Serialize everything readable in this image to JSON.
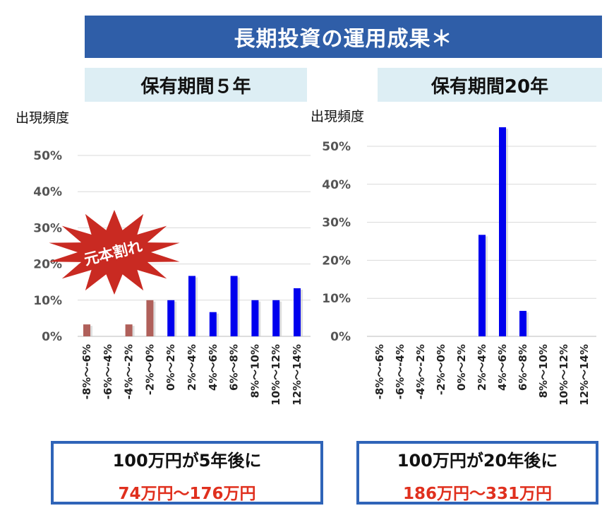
{
  "header": {
    "title": "長期投資の運用成果＊"
  },
  "left": {
    "period_label": "保有期間５年",
    "freq_label": "出現頻度",
    "burst_label": "元本割れ",
    "result_title": "100万円が5年後に",
    "result_range": "74万円～176万円"
  },
  "right": {
    "period_label": "保有期間20年",
    "freq_label": "出現頻度",
    "result_title": "100万円が20年後に",
    "result_range": "186万円～331万円"
  },
  "colors": {
    "banner": "#2f5ea8",
    "positive_bar": "#0000ee",
    "loss_bar": "#b0605a",
    "accent": "#e0301e",
    "burst": "#c92a22"
  },
  "chart_data": [
    {
      "type": "bar",
      "categories": [
        "-8%～-6%",
        "-6%～-4%",
        "-4%～-2%",
        "-2%～0%",
        "0%～2%",
        "2%～4%",
        "4%～6%",
        "6%～8%",
        "8%～10%",
        "10%～12%",
        "12%～14%"
      ],
      "values": [
        3.3,
        0,
        3.3,
        10,
        10,
        16.7,
        6.7,
        16.7,
        10,
        10,
        13.3
      ],
      "yticks": [
        "0%",
        "10%",
        "20%",
        "30%",
        "40%",
        "50%"
      ],
      "ylim": [
        0,
        50
      ],
      "grid": true
    },
    {
      "type": "bar",
      "categories": [
        "-8%～-6%",
        "-6%～-4%",
        "-4%～-2%",
        "-2%～0%",
        "0%～2%",
        "2%～4%",
        "4%～6%",
        "6%～8%",
        "8%～10%",
        "10%～12%",
        "12%～14%"
      ],
      "values": [
        0,
        0,
        0,
        0,
        0,
        26.7,
        55,
        6.7,
        0,
        0,
        0
      ],
      "yticks": [
        "0%",
        "10%",
        "20%",
        "30%",
        "40%",
        "50%"
      ],
      "ylim": [
        0,
        55
      ],
      "grid": true
    }
  ]
}
